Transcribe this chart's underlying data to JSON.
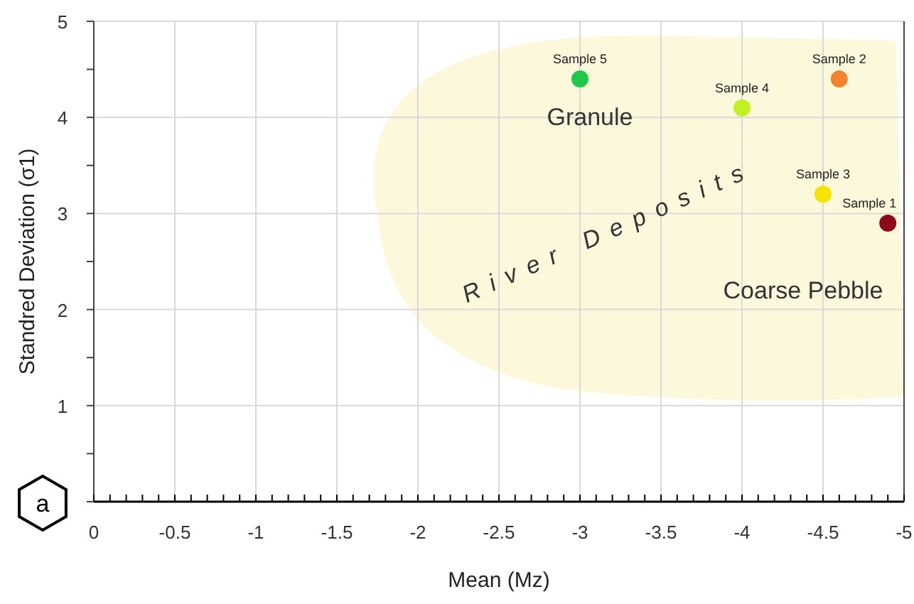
{
  "chart_data": {
    "type": "scatter",
    "xlabel": "Mean (Mz)",
    "ylabel": "Standred Deviation (σ1)",
    "xlim": [
      0,
      -5
    ],
    "ylim": [
      0,
      5
    ],
    "xticks": [
      0,
      {
        "value": -0.1,
        "label": null
      },
      {
        "value": -0.2,
        "label": null
      },
      {
        "value": -0.3,
        "label": null
      },
      {
        "value": -0.4,
        "label": null
      },
      -0.5,
      {
        "value": -0.6,
        "label": null
      },
      {
        "value": -0.7,
        "label": null
      },
      {
        "value": -0.8,
        "label": null
      },
      {
        "value": -0.9,
        "label": null
      },
      -1,
      {
        "value": -1.1,
        "label": null
      },
      {
        "value": -1.2,
        "label": null
      },
      {
        "value": -1.3,
        "label": null
      },
      {
        "value": -1.4,
        "label": null
      },
      -1.5,
      {
        "value": -1.6,
        "label": null
      },
      {
        "value": -1.7,
        "label": null
      },
      {
        "value": -1.8,
        "label": null
      },
      {
        "value": -1.9,
        "label": null
      },
      -2,
      {
        "value": -2.1,
        "label": null
      },
      {
        "value": -2.2,
        "label": null
      },
      {
        "value": -2.3,
        "label": null
      },
      {
        "value": -2.4,
        "label": null
      },
      -2.5,
      {
        "value": -2.6,
        "label": null
      },
      {
        "value": -2.7,
        "label": null
      },
      {
        "value": -2.8,
        "label": null
      },
      {
        "value": -2.9,
        "label": null
      },
      -3,
      {
        "value": -3.1,
        "label": null
      },
      {
        "value": -3.2,
        "label": null
      },
      {
        "value": -3.3,
        "label": null
      },
      {
        "value": -3.4,
        "label": null
      },
      -3.5,
      {
        "value": -3.6,
        "label": null
      },
      {
        "value": -3.7,
        "label": null
      },
      {
        "value": -3.8,
        "label": null
      },
      {
        "value": -3.9,
        "label": null
      },
      -4,
      {
        "value": -4.1,
        "label": null
      },
      {
        "value": -4.2,
        "label": null
      },
      {
        "value": -4.3,
        "label": null
      },
      {
        "value": -4.4,
        "label": null
      },
      -4.5,
      {
        "value": -4.6,
        "label": null
      },
      {
        "value": -4.7,
        "label": null
      },
      {
        "value": -4.8,
        "label": null
      },
      {
        "value": -4.9,
        "label": null
      },
      -5
    ],
    "yticks": [
      {
        "value": 0,
        "label": null
      },
      {
        "value": 0.5,
        "label": null
      },
      1,
      {
        "value": 1.5,
        "label": null
      },
      2,
      {
        "value": 2.5,
        "label": null
      },
      3,
      {
        "value": 3.5,
        "label": null
      },
      4,
      {
        "value": 4.5,
        "label": null
      },
      5
    ],
    "grid": true,
    "marker": "circle",
    "series": [
      {
        "name": "Sample 1",
        "color": "#8b0a1e",
        "x": [
          -4.9
        ],
        "values": [
          2.9
        ]
      },
      {
        "name": "Sample 2",
        "color": "#f7812e",
        "x": [
          -4.6
        ],
        "values": [
          4.4
        ]
      },
      {
        "name": "Sample 3",
        "color": "#f5e400",
        "x": [
          -4.5
        ],
        "values": [
          3.2
        ]
      },
      {
        "name": "Sample 4",
        "color": "#c3f020",
        "x": [
          -4
        ],
        "values": [
          4.1
        ]
      },
      {
        "name": "Sample 5",
        "color": "#1ec94a",
        "x": [
          -3
        ],
        "values": [
          4.4
        ]
      }
    ],
    "annotations": [
      "Granule",
      "Coarse Pebble",
      "River Deposits",
      "a"
    ]
  }
}
